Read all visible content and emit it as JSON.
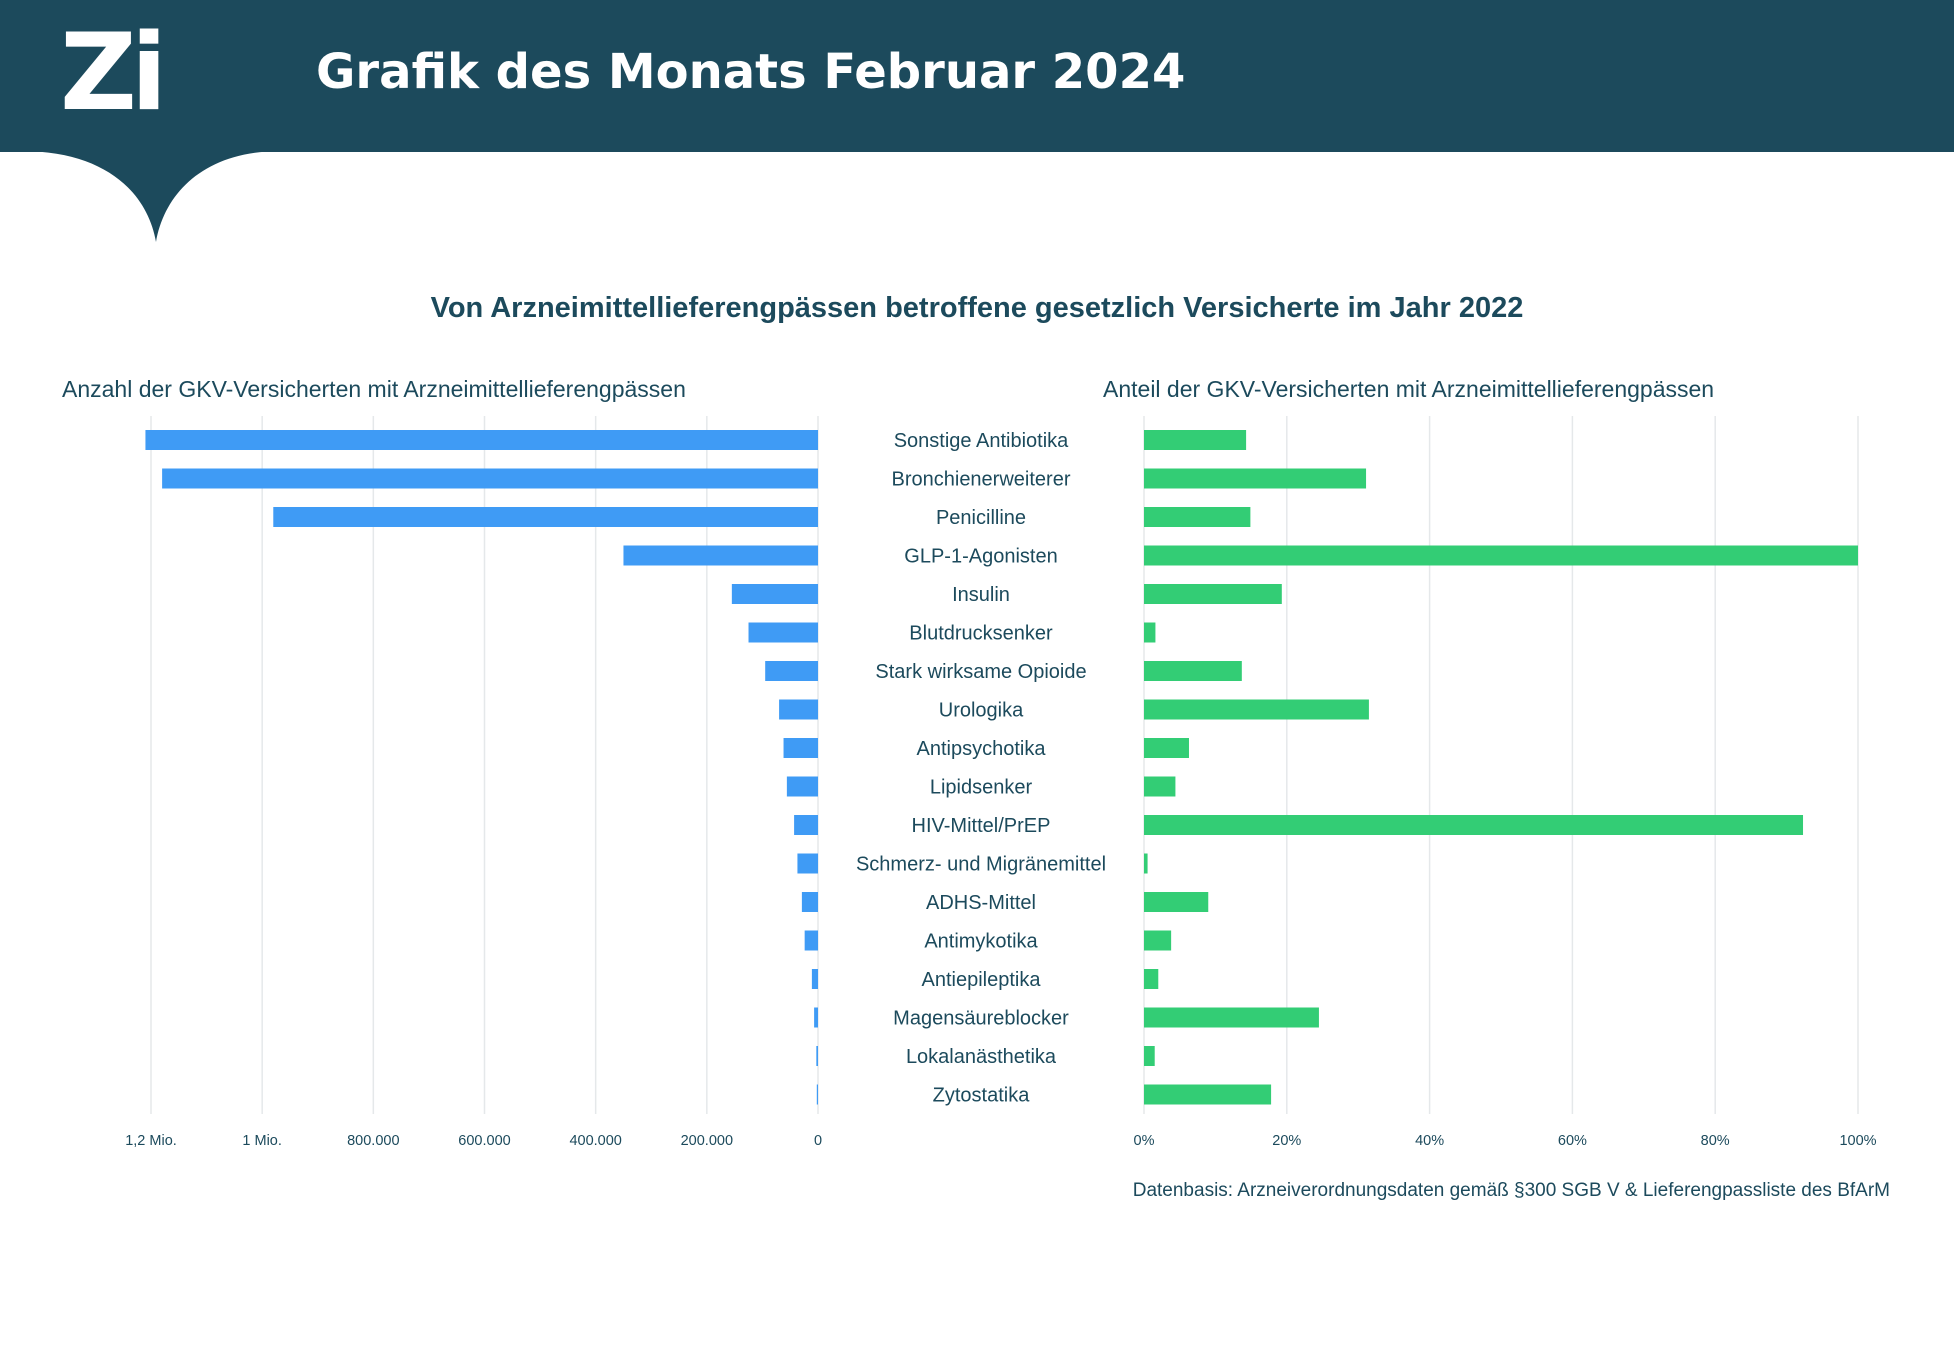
{
  "header": {
    "logo_text": "Zi",
    "title": "Grafik des Monats Februar 2024"
  },
  "colors": {
    "header_bg": "#1c4a5c",
    "left_bar": "#3f9bf5",
    "right_bar": "#33cd75",
    "grid": "#e5e8ea",
    "text": "#1c4a5c"
  },
  "chart_data": {
    "title": "Von Arzneimittellieferengpässen betroffene gesetzlich Versicherte im Jahr 2022",
    "categories": [
      "Sonstige Antibiotika",
      "Bronchienerweiterer",
      "Penicilline",
      "GLP-1-Agonisten",
      "Insulin",
      "Blutdrucksenker",
      "Stark wirksame Opioide",
      "Urologika",
      "Antipsychotika",
      "Lipidsenker",
      "HIV-Mittel/PrEP",
      "Schmerz- und Migränemittel",
      "ADHS-Mittel",
      "Antimykotika",
      "Antiepileptika",
      "Magensäureblocker",
      "Lokalanästhetika",
      "Zytostatika"
    ],
    "left": {
      "type": "bar",
      "orientation": "horizontal",
      "direction": "right-to-left",
      "subtitle": "Anzahl der GKV-Versicherten mit Arzneimittellieferengpässen",
      "xlim": [
        0,
        1200000
      ],
      "ticks": [
        {
          "value": 1200000,
          "label": "1,2 Mio."
        },
        {
          "value": 1000000,
          "label": "1 Mio."
        },
        {
          "value": 800000,
          "label": "800.000"
        },
        {
          "value": 600000,
          "label": "600.000"
        },
        {
          "value": 400000,
          "label": "400.000"
        },
        {
          "value": 200000,
          "label": "200.000"
        },
        {
          "value": 0,
          "label": "0"
        }
      ],
      "values": [
        1210000,
        1180000,
        980000,
        350000,
        155000,
        125000,
        95000,
        70000,
        62000,
        56000,
        43000,
        37000,
        29000,
        24000,
        11000,
        7000,
        3000,
        2000
      ]
    },
    "right": {
      "type": "bar",
      "orientation": "horizontal",
      "subtitle": "Anteil der GKV-Versicherten mit Arzneimittellieferengpässen",
      "xlim": [
        0,
        100
      ],
      "unit": "%",
      "ticks": [
        {
          "value": 0,
          "label": "0%"
        },
        {
          "value": 20,
          "label": "20%"
        },
        {
          "value": 40,
          "label": "40%"
        },
        {
          "value": 60,
          "label": "60%"
        },
        {
          "value": 80,
          "label": "80%"
        },
        {
          "value": 100,
          "label": "100%"
        }
      ],
      "values": [
        14.3,
        31.1,
        14.9,
        100,
        19.3,
        1.6,
        13.7,
        31.5,
        6.3,
        4.4,
        92.3,
        0.5,
        9.0,
        3.8,
        2.0,
        24.5,
        1.5,
        17.8
      ]
    },
    "grid": true,
    "source": "Datenbasis: Arzneiverordnungsdaten gemäß §300 SGB V & Lieferengpassliste des BfArM"
  }
}
